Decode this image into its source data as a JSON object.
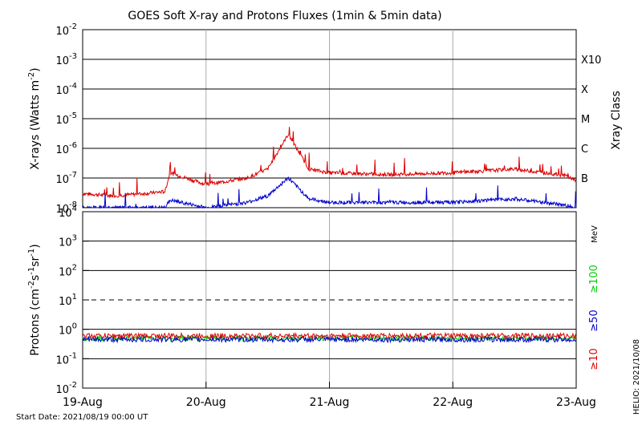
{
  "chart_data": [
    {
      "type": "line",
      "title": "GOES Soft X-ray and Protons Fluxes   (1min & 5min data)",
      "ylabel_main": "X-rays (Watts m",
      "ylabel_sup": "-2",
      "ylabel_close": ")",
      "yscale": "log",
      "ylim": [
        1e-08,
        0.01
      ],
      "yticks": [
        {
          "base": "10",
          "exp": "-2"
        },
        {
          "base": "10",
          "exp": "-3"
        },
        {
          "base": "10",
          "exp": "-4"
        },
        {
          "base": "10",
          "exp": "-5"
        },
        {
          "base": "10",
          "exp": "-6"
        },
        {
          "base": "10",
          "exp": "-7"
        },
        {
          "base": "10",
          "exp": "-8"
        }
      ],
      "right_axis_label": "Xray Class",
      "classes": [
        "X10",
        "X",
        "M",
        "C",
        "B"
      ],
      "class_levels": [
        0.001,
        0.0001,
        1e-05,
        1e-06,
        1e-07
      ],
      "x": [
        "08-19 00:00",
        "08-19 06:00",
        "08-19 12:00",
        "08-19 16:00",
        "08-19 17:00",
        "08-20 00:00",
        "08-20 08:00",
        "08-20 12:00",
        "08-20 16:00",
        "08-20 20:00",
        "08-21 00:00",
        "08-21 12:00",
        "08-22 00:00",
        "08-22 12:00",
        "08-22 22:00",
        "08-23 00:00"
      ],
      "series": [
        {
          "values": [
            3e-08,
            2.5e-08,
            3e-08,
            3.5e-08,
            1.5e-07,
            6e-08,
            1e-07,
            2e-07,
            3e-06,
            2e-07,
            1.5e-07,
            1.3e-07,
            1.5e-07,
            2e-07,
            1.2e-07,
            8e-08
          ],
          "color": "#dd0000"
        },
        {
          "values": [
            1e-08,
            1e-08,
            1e-08,
            1e-08,
            1.8e-08,
            1e-08,
            1.5e-08,
            2.5e-08,
            1e-07,
            2e-08,
            1.5e-08,
            1.5e-08,
            1.5e-08,
            2e-08,
            1.2e-08,
            1e-08
          ],
          "color": "#0000cc"
        }
      ]
    },
    {
      "type": "line",
      "ylabel_main": "Protons (cm",
      "ylabel_sup1": "-2",
      "ylabel_mid": "s",
      "ylabel_sup2": "-1",
      "ylabel_mid2": "sr",
      "ylabel_sup3": "-1",
      "ylabel_close": ")",
      "yscale": "log",
      "ylim": [
        0.01,
        10000
      ],
      "yticks": [
        {
          "base": "10",
          "exp": "4"
        },
        {
          "base": "10",
          "exp": "3"
        },
        {
          "base": "10",
          "exp": "2"
        },
        {
          "base": "10",
          "exp": "1"
        },
        {
          "base": "10",
          "exp": "0"
        },
        {
          "base": "10",
          "exp": "-1"
        },
        {
          "base": "10",
          "exp": "-2"
        }
      ],
      "threshold": 10,
      "energy_unit": "MeV",
      "series": [
        {
          "name": "≥100",
          "value": 0.5,
          "color": "#00cc00"
        },
        {
          "name": "≥50",
          "value": 0.45,
          "color": "#0000cc"
        },
        {
          "name": "≥10",
          "value": 0.6,
          "color": "#dd0000"
        }
      ]
    }
  ],
  "xticks": [
    "19-Aug",
    "20-Aug",
    "21-Aug",
    "22-Aug",
    "23-Aug"
  ],
  "start_date": "Start Date: 2021/08/19 00:00 UT",
  "helio": "HELIO: 2021/10/08"
}
